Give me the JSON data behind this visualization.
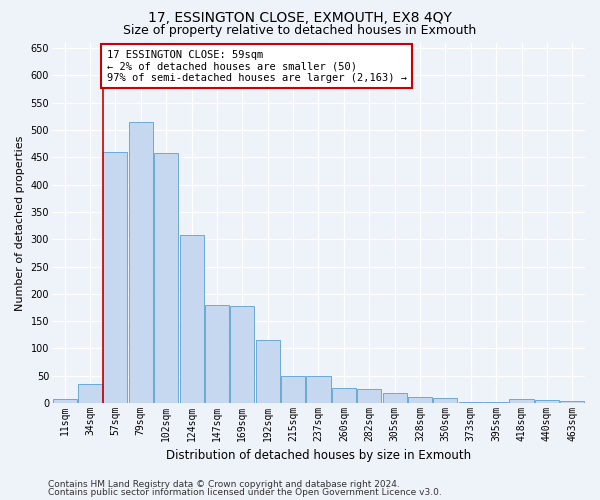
{
  "title": "17, ESSINGTON CLOSE, EXMOUTH, EX8 4QY",
  "subtitle": "Size of property relative to detached houses in Exmouth",
  "xlabel": "Distribution of detached houses by size in Exmouth",
  "ylabel": "Number of detached properties",
  "bar_color": "#c5d8ef",
  "bar_edge_color": "#6aaad4",
  "categories": [
    "11sqm",
    "34sqm",
    "57sqm",
    "79sqm",
    "102sqm",
    "124sqm",
    "147sqm",
    "169sqm",
    "192sqm",
    "215sqm",
    "237sqm",
    "260sqm",
    "282sqm",
    "305sqm",
    "328sqm",
    "350sqm",
    "373sqm",
    "395sqm",
    "418sqm",
    "440sqm",
    "463sqm"
  ],
  "values": [
    7,
    35,
    460,
    515,
    457,
    307,
    180,
    178,
    115,
    50,
    50,
    27,
    25,
    18,
    12,
    9,
    2,
    2,
    7,
    6,
    3
  ],
  "ylim": [
    0,
    660
  ],
  "yticks": [
    0,
    50,
    100,
    150,
    200,
    250,
    300,
    350,
    400,
    450,
    500,
    550,
    600,
    650
  ],
  "vline_index": 2,
  "vline_color": "#cc0000",
  "annotation_text": "17 ESSINGTON CLOSE: 59sqm\n← 2% of detached houses are smaller (50)\n97% of semi-detached houses are larger (2,163) →",
  "annotation_box_color": "#ffffff",
  "annotation_box_edge": "#cc0000",
  "footer1": "Contains HM Land Registry data © Crown copyright and database right 2024.",
  "footer2": "Contains public sector information licensed under the Open Government Licence v3.0.",
  "bg_color": "#eef2f9",
  "grid_color": "#ffffff",
  "title_fontsize": 10,
  "subtitle_fontsize": 9,
  "ylabel_fontsize": 8,
  "xlabel_fontsize": 8.5,
  "tick_fontsize": 7,
  "annot_fontsize": 7.5,
  "footer_fontsize": 6.5
}
